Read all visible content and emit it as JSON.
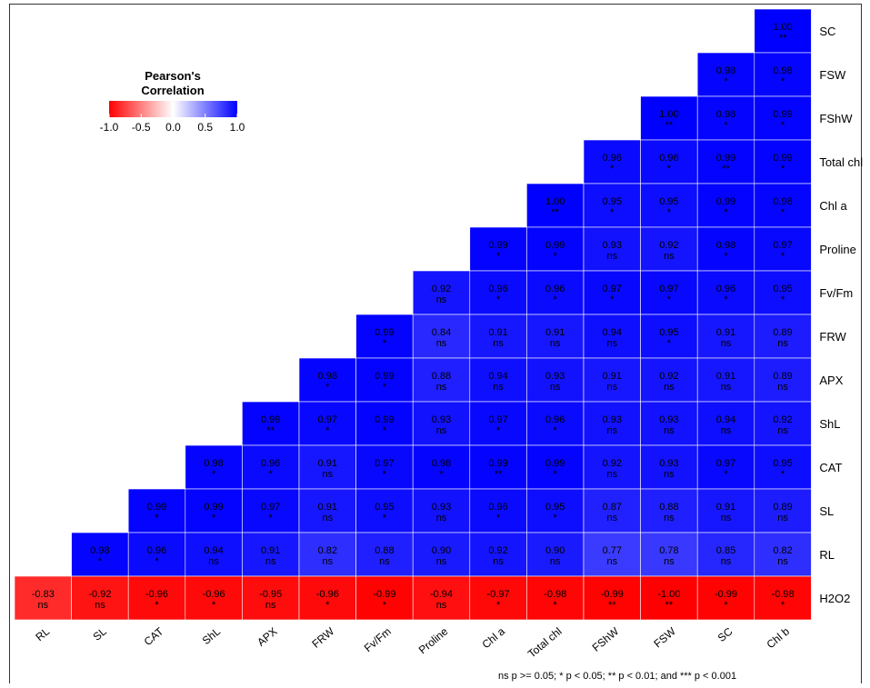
{
  "chart_data": {
    "type": "heatmap",
    "variables": [
      "RL",
      "SL",
      "CAT",
      "ShL",
      "APX",
      "FRW",
      "Fv/Fm",
      "Proline",
      "Chl a",
      "Total chl",
      "FShW",
      "FSW",
      "SC",
      "Chl b",
      "H2O2"
    ],
    "row_labels_top_to_bottom": [
      "SC",
      "FSW",
      "FShW",
      "Total chl",
      "Chl a",
      "Proline",
      "Fv/Fm",
      "FRW",
      "APX",
      "ShL",
      "CAT",
      "SL",
      "RL",
      "H2O2"
    ],
    "column_labels": [
      "RL",
      "SL",
      "CAT",
      "ShL",
      "APX",
      "FRW",
      "Fv/Fm",
      "Proline",
      "Chl a",
      "Total chl",
      "FShW",
      "FSW",
      "SC",
      "Chl b"
    ],
    "rows": [
      {
        "row": "SC",
        "values": [
          1.0
        ],
        "sig": [
          "**"
        ]
      },
      {
        "row": "FSW",
        "values": [
          0.98,
          0.98
        ],
        "sig": [
          "*",
          "*"
        ]
      },
      {
        "row": "FShW",
        "values": [
          1.0,
          0.98,
          0.99
        ],
        "sig": [
          "**",
          "*",
          "*"
        ]
      },
      {
        "row": "Total chl",
        "values": [
          0.96,
          0.96,
          0.99,
          0.99
        ],
        "sig": [
          "*",
          "*",
          "**",
          "*"
        ]
      },
      {
        "row": "Chl a",
        "values": [
          1.0,
          0.95,
          0.95,
          0.99,
          0.98
        ],
        "sig": [
          "**",
          "*",
          "*",
          "*",
          "*"
        ]
      },
      {
        "row": "Proline",
        "values": [
          0.99,
          0.99,
          0.93,
          0.92,
          0.98,
          0.97
        ],
        "sig": [
          "*",
          "*",
          "ns",
          "ns",
          "*",
          "*"
        ]
      },
      {
        "row": "Fv/Fm",
        "values": [
          0.92,
          0.96,
          0.96,
          0.97,
          0.97,
          0.96,
          0.95
        ],
        "sig": [
          "ns",
          "*",
          "*",
          "*",
          "*",
          "*",
          "*"
        ]
      },
      {
        "row": "FRW",
        "values": [
          0.99,
          0.84,
          0.91,
          0.91,
          0.94,
          0.95,
          0.91,
          0.89
        ],
        "sig": [
          "*",
          "ns",
          "ns",
          "ns",
          "ns",
          "*",
          "ns",
          "ns"
        ]
      },
      {
        "row": "APX",
        "values": [
          0.98,
          0.99,
          0.88,
          0.94,
          0.93,
          0.91,
          0.92,
          0.91,
          0.89
        ],
        "sig": [
          "*",
          "*",
          "ns",
          "ns",
          "ns",
          "ns",
          "ns",
          "ns",
          "ns"
        ]
      },
      {
        "row": "ShL",
        "values": [
          0.99,
          0.97,
          0.99,
          0.93,
          0.97,
          0.96,
          0.93,
          0.93,
          0.94,
          0.92
        ],
        "sig": [
          "**",
          "*",
          "*",
          "ns",
          "*",
          "*",
          "ns",
          "ns",
          "ns",
          "ns"
        ]
      },
      {
        "row": "CAT",
        "values": [
          0.98,
          0.96,
          0.91,
          0.97,
          0.98,
          0.99,
          0.99,
          0.92,
          0.93,
          0.97,
          0.95
        ],
        "sig": [
          "*",
          "*",
          "ns",
          "*",
          "*",
          "**",
          "*",
          "ns",
          "ns",
          "*",
          "*"
        ]
      },
      {
        "row": "SL",
        "values": [
          0.99,
          0.99,
          0.97,
          0.91,
          0.95,
          0.93,
          0.96,
          0.95,
          0.87,
          0.88,
          0.91,
          0.89
        ],
        "sig": [
          "*",
          "*",
          "*",
          "ns",
          "*",
          "ns",
          "*",
          "*",
          "ns",
          "ns",
          "ns",
          "ns"
        ]
      },
      {
        "row": "RL",
        "values": [
          0.98,
          0.96,
          0.94,
          0.91,
          0.82,
          0.88,
          0.9,
          0.92,
          0.9,
          0.77,
          0.78,
          0.85,
          0.82
        ],
        "sig": [
          "*",
          "*",
          "ns",
          "ns",
          "ns",
          "ns",
          "ns",
          "ns",
          "ns",
          "ns",
          "ns",
          "ns",
          "ns"
        ]
      },
      {
        "row": "H2O2",
        "values": [
          -0.83,
          -0.92,
          -0.96,
          -0.96,
          -0.95,
          -0.96,
          -0.99,
          -0.94,
          -0.97,
          -0.98,
          -0.99,
          -1.0,
          -0.99,
          -0.98
        ],
        "sig": [
          "ns",
          "ns",
          "*",
          "*",
          "ns",
          "*",
          "*",
          "ns",
          "*",
          "*",
          "**",
          "**",
          "*",
          "*"
        ]
      }
    ],
    "legend": {
      "title_line1": "Pearson's",
      "title_line2": "Correlation",
      "ticks": [
        "-1.0",
        "-0.5",
        "0.0",
        "0.5",
        "1.0"
      ],
      "tick_values": [
        -1.0,
        -0.5,
        0.0,
        0.5,
        1.0
      ],
      "placement": "top-left"
    },
    "colors": {
      "negative": "#ff0000",
      "zero": "#ffffff",
      "positive": "#0000ff"
    },
    "value_range": [
      -1,
      1
    ],
    "footnote": "ns p >= 0.05; * p < 0.05; ** p < 0.01; and *** p < 0.001"
  }
}
